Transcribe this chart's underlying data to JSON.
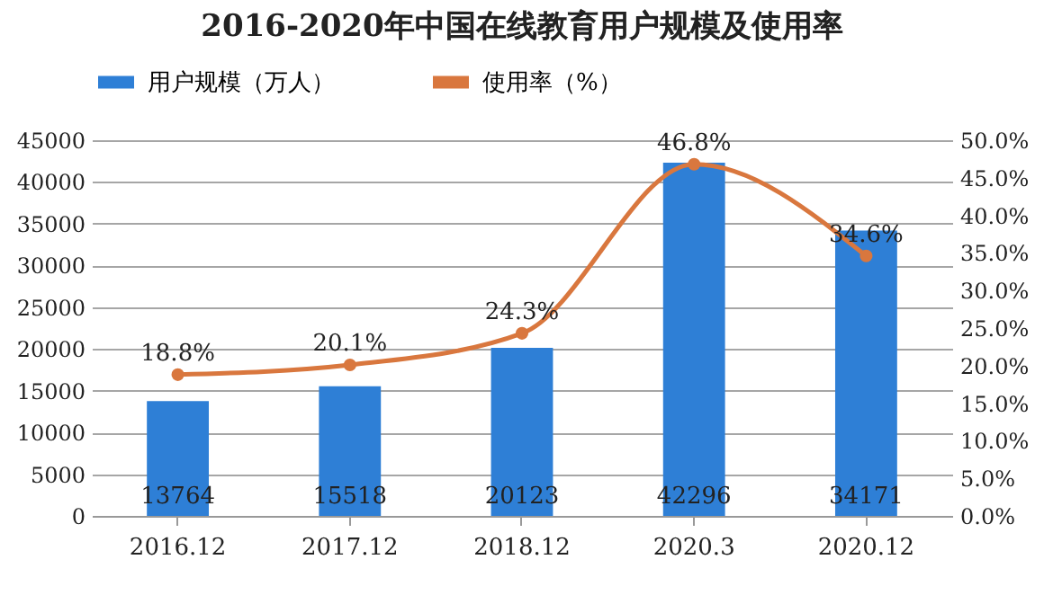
{
  "chart_data": {
    "type": "bar",
    "title": "2016-2020年中国在线教育用户规模及使用率",
    "categories": [
      "2016.12",
      "2017.12",
      "2018.12",
      "2020.3",
      "2020.12"
    ],
    "series": [
      {
        "name": "用户规模（万人）",
        "color": "#2e7fd6",
        "values": [
          13764,
          15518,
          20123,
          42296,
          34171
        ]
      },
      {
        "name": "使用率（%）",
        "type": "line",
        "axis": "y2",
        "color": "#d9773e",
        "marker": "circle",
        "line_style": "solid",
        "values": [
          18.8,
          20.1,
          24.3,
          46.8,
          34.6
        ],
        "value_labels": [
          "18.8%",
          "20.1%",
          "24.3%",
          "46.8%",
          "34.6%"
        ]
      }
    ],
    "ylim": [
      0,
      45000
    ],
    "yticks": [
      0,
      5000,
      10000,
      15000,
      20000,
      25000,
      30000,
      35000,
      40000,
      45000
    ],
    "y2lim": [
      0,
      50
    ],
    "y2ticks": [
      {
        "value": 0,
        "label": "0.0%"
      },
      {
        "value": 5,
        "label": "5.0%"
      },
      {
        "value": 10,
        "label": "10.0%"
      },
      {
        "value": 15,
        "label": "15.0%"
      },
      {
        "value": 20,
        "label": "20.0%"
      },
      {
        "value": 25,
        "label": "25.0%"
      },
      {
        "value": 30,
        "label": "30.0%"
      },
      {
        "value": 35,
        "label": "35.0%"
      },
      {
        "value": 40,
        "label": "40.0%"
      },
      {
        "value": 45,
        "label": "45.0%"
      },
      {
        "value": 50,
        "label": "50.0%"
      }
    ],
    "grid": "y",
    "legend": "top",
    "data_labels": true
  }
}
